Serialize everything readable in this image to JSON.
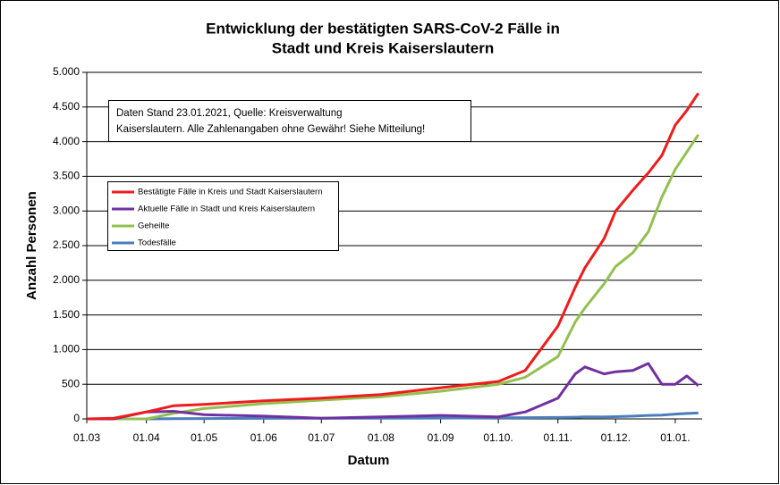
{
  "chart_data": {
    "type": "line",
    "title": [
      "Entwicklung der bestätigten SARS-CoV-2 Fälle in",
      "Stadt und Kreis Kaiserslautern"
    ],
    "annotation": [
      "Daten Stand 23.01.2021, Quelle: Kreisverwaltung",
      "Kaiserslautern. Alle Zahlenangaben ohne Gewähr! Siehe Mitteilung!"
    ],
    "x_label": "Datum",
    "y_label": "Anzahl Personen",
    "x": [
      "01.03",
      "15.03",
      "01.04",
      "15.04",
      "01.05",
      "01.06",
      "01.07",
      "01.08",
      "01.09",
      "01.10",
      "15.10",
      "01.11",
      "10.11",
      "15.11",
      "25.11",
      "01.12",
      "10.12",
      "18.12",
      "25.12",
      "01.01",
      "07.01",
      "13.01"
    ],
    "series": [
      {
        "name": "Bestätigte Fälle in Kreis und Stadt Kaiserslautern",
        "color": "#ee1c1c",
        "values": [
          0,
          10,
          100,
          190,
          210,
          260,
          300,
          350,
          450,
          540,
          700,
          1340,
          1900,
          2180,
          2600,
          3000,
          3300,
          3550,
          3800,
          4240,
          4450,
          4700
        ]
      },
      {
        "name": "Aktuelle Fälle in Stadt und Kreis Kaiserslautern",
        "color": "#7030a0",
        "values": [
          0,
          0,
          100,
          110,
          60,
          40,
          10,
          30,
          50,
          30,
          100,
          300,
          650,
          750,
          650,
          680,
          700,
          800,
          500,
          500,
          620,
          480
        ]
      },
      {
        "name": "Geheilte",
        "color": "#92c050",
        "values": [
          0,
          0,
          0,
          80,
          150,
          220,
          270,
          320,
          400,
          500,
          600,
          900,
          1400,
          1600,
          1950,
          2200,
          2400,
          2700,
          3200,
          3600,
          3850,
          4100
        ]
      },
      {
        "name": "Todesfälle",
        "color": "#4a7ebb",
        "values": [
          0,
          0,
          0,
          2,
          5,
          8,
          10,
          10,
          12,
          15,
          18,
          20,
          25,
          28,
          30,
          32,
          40,
          50,
          55,
          70,
          78,
          85
        ]
      }
    ],
    "xlim": [
      "01.03",
      "15.01"
    ],
    "xticks": [
      "01.03",
      "01.04",
      "01.05",
      "01.06",
      "01.07",
      "01.08",
      "01.09",
      "01.10.",
      "01.11.",
      "01.12.",
      "01.01."
    ],
    "ylim": [
      0,
      5000
    ],
    "yticks": [
      0,
      500,
      {
        "value": 1000,
        "label": "1.000"
      },
      {
        "value": 1500,
        "label": "1.500"
      },
      {
        "value": 2000,
        "label": "2.000"
      },
      {
        "value": 2500,
        "label": "2.500"
      },
      {
        "value": 3000,
        "label": "3.000"
      },
      {
        "value": 3500,
        "label": "3.500"
      },
      {
        "value": 4000,
        "label": "4.000"
      },
      {
        "value": 4500,
        "label": "4.500"
      },
      {
        "value": 5000,
        "label": "5.000"
      }
    ],
    "grid": true
  }
}
